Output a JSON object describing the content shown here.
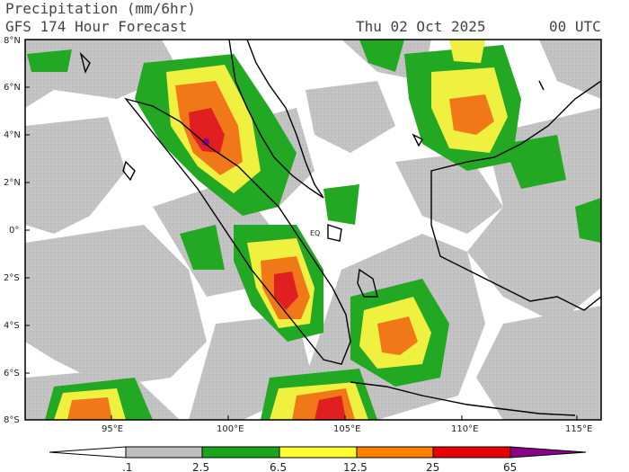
{
  "header": {
    "title": "Precipitation (mm/6hr)",
    "subtitle": "GFS 174 Hour Forecast",
    "valid_date": "Thu 02 Oct 2025",
    "valid_time": "00 UTC"
  },
  "map": {
    "lat_labels": [
      "8°N",
      "6°N",
      "4°N",
      "2°N",
      "0°",
      "2°S",
      "4°S",
      "6°S",
      "8°S"
    ],
    "lon_labels": [
      "95°E",
      "100°E",
      "105°E",
      "110°E",
      "115°E"
    ],
    "land_mask_label": "EQ"
  },
  "colorbar": {
    "labels": [
      ".1",
      "2.5",
      "6.5",
      "12.5",
      "25",
      "65"
    ],
    "colors": [
      "#ffffff",
      "#bebebe",
      "#1aa51a",
      "#ffff33",
      "#ff7f00",
      "#e60000",
      "#8b008b"
    ]
  },
  "colors": {
    "no_precip": "#ffffff",
    "light": "#c8c8c8",
    "moderate": "#22a822",
    "heavy": "#f0f040",
    "very_heavy": "#f07818",
    "extreme": "#e02020",
    "max": "#8b008b",
    "coast": "#000000"
  }
}
